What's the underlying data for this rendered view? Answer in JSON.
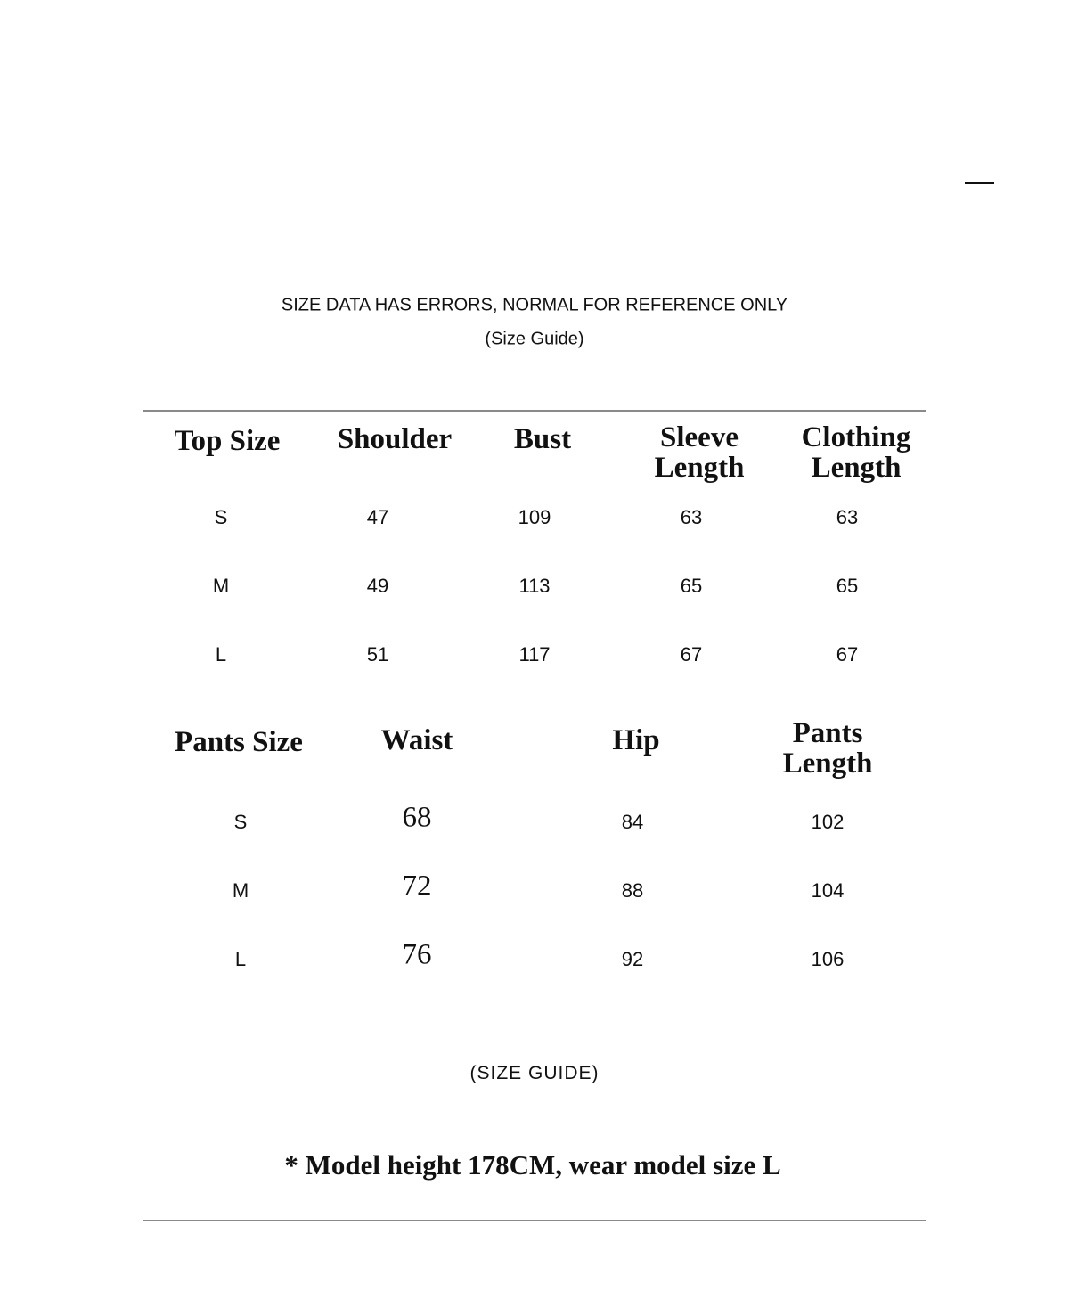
{
  "notice": "SIZE DATA HAS ERRORS, NORMAL FOR REFERENCE ONLY",
  "subtitle": "(Size Guide)",
  "top_table": {
    "headers": [
      "Top Size",
      "Shoulder",
      "Bust",
      "Sleeve\nLength",
      "Clothing\nLength"
    ],
    "rows": [
      [
        "S",
        "47",
        "109",
        "63",
        "63"
      ],
      [
        "M",
        "49",
        "113",
        "65",
        "65"
      ],
      [
        "L",
        "51",
        "117",
        "67",
        "67"
      ]
    ]
  },
  "pants_table": {
    "headers": [
      "Pants Size",
      "Waist",
      "Hip",
      "Pants\nLength"
    ],
    "rows": [
      [
        "S",
        "68",
        "84",
        "102"
      ],
      [
        "M",
        "72",
        "88",
        "104"
      ],
      [
        "L",
        "76",
        "92",
        "106"
      ]
    ]
  },
  "footer_label": "(SIZE GUIDE)",
  "model_note": "* Model height 178CM, wear model size L"
}
